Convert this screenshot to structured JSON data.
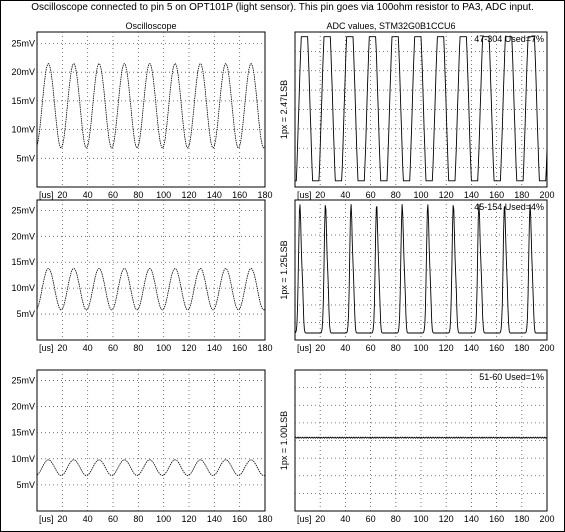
{
  "title": "Oscilloscope connected to pin 5 on OPT101P (light sensor). This pin goes via 100ohm resistor to PA3, ADC input.",
  "chart_data": [
    {
      "id": "osc-1",
      "type": "line",
      "title": "Oscilloscope",
      "annotation": "",
      "ylabel": "",
      "xunit": "[us]",
      "xlim": [
        0,
        180
      ],
      "ylim": [
        0,
        27
      ],
      "xticks": [
        20,
        40,
        60,
        80,
        100,
        120,
        140,
        160,
        180
      ],
      "yticks": [
        5,
        10,
        15,
        20,
        25
      ],
      "ytick_labels": [
        "5mV",
        "10mV",
        "15mV",
        "20mV",
        "25mV"
      ],
      "grid": true,
      "series": [
        {
          "period_us": 20,
          "min": 6.8,
          "max": 21.5,
          "phase_us": 4
        }
      ]
    },
    {
      "id": "adc-1",
      "type": "line",
      "title": "ADC values, STM32G0B1CCU6",
      "annotation": "47-304 Used=7%",
      "ylabel": "1px = 2.47LSB",
      "xunit": "[us]",
      "xlim": [
        0,
        200
      ],
      "ylim": [
        0,
        1
      ],
      "xticks": [
        20,
        40,
        60,
        80,
        100,
        120,
        140,
        160,
        180,
        200
      ],
      "yticks": [],
      "ytick_labels": [],
      "grid": true,
      "series": [
        {
          "period_us": 18,
          "min": 0.04,
          "max": 0.97,
          "phase_us": 3
        }
      ]
    },
    {
      "id": "osc-2",
      "type": "line",
      "title": "",
      "annotation": "",
      "ylabel": "",
      "xunit": "[us]",
      "xlim": [
        0,
        180
      ],
      "ylim": [
        0,
        27
      ],
      "xticks": [
        20,
        40,
        60,
        80,
        100,
        120,
        140,
        160,
        180
      ],
      "yticks": [
        5,
        10,
        15,
        20,
        25
      ],
      "ytick_labels": [
        "5mV",
        "10mV",
        "15mV",
        "20mV",
        "25mV"
      ],
      "grid": true,
      "series": [
        {
          "period_us": 20,
          "min": 5.8,
          "max": 13.8,
          "phase_us": 4
        }
      ]
    },
    {
      "id": "adc-2",
      "type": "line",
      "title": "",
      "annotation": "45-154 Used=4%",
      "ylabel": "1px = 1.25LSB",
      "xunit": "[us]",
      "xlim": [
        0,
        200
      ],
      "ylim": [
        0,
        1
      ],
      "xticks": [
        20,
        40,
        60,
        80,
        100,
        120,
        140,
        160,
        180,
        200
      ],
      "yticks": [],
      "ytick_labels": [],
      "grid": true,
      "series": [
        {
          "period_us": 20.3,
          "min": 0.05,
          "max": 0.97,
          "phase_us": 14
        }
      ]
    },
    {
      "id": "osc-3",
      "type": "line",
      "title": "",
      "annotation": "",
      "ylabel": "",
      "xunit": "[us]",
      "xlim": [
        0,
        180
      ],
      "ylim": [
        0,
        27
      ],
      "xticks": [
        20,
        40,
        60,
        80,
        100,
        120,
        140,
        160,
        180
      ],
      "yticks": [
        5,
        10,
        15,
        20,
        25
      ],
      "ytick_labels": [
        "5mV",
        "10mV",
        "15mV",
        "20mV",
        "25mV"
      ],
      "grid": true,
      "series": [
        {
          "period_us": 20,
          "min": 6.8,
          "max": 9.8,
          "phase_us": 4
        }
      ]
    },
    {
      "id": "adc-3",
      "type": "line",
      "title": "",
      "annotation": "51-60 Used=1%",
      "ylabel": "1px = 1.00LSB",
      "xunit": "[us]",
      "xlim": [
        0,
        200
      ],
      "ylim": [
        0,
        1
      ],
      "xticks": [
        20,
        40,
        60,
        80,
        100,
        120,
        140,
        160,
        180,
        200
      ],
      "yticks": [],
      "ytick_labels": [],
      "grid": true,
      "series": [
        {
          "period_us": 0,
          "min": 0.52,
          "max": 0.52,
          "phase_us": 0
        }
      ]
    }
  ]
}
